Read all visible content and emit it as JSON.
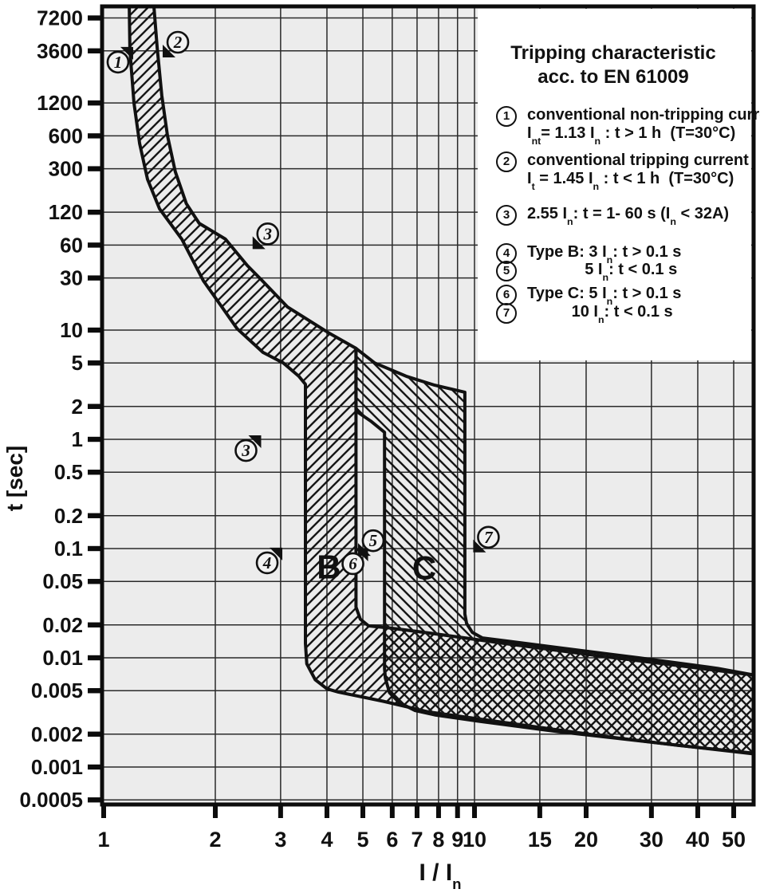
{
  "colors": {
    "background": "#ffffff",
    "plot_background": "#ececec",
    "grid": "#2a2a2a",
    "ink": "#111111"
  },
  "axes": {
    "y_label": "t [sec]",
    "x_label": "I / I_n_"
  },
  "legend": {
    "title_line1": "Tripping characteristic",
    "title_line2": "acc. to EN 61009",
    "items": [
      {
        "num": "1",
        "lines": [
          "conventional non-tripping current",
          "I_nt_= 1.13 I_n_ : t > 1 h  (T=30°C)"
        ]
      },
      {
        "num": "2",
        "lines": [
          "conventional tripping current",
          "I_t_ = 1.45 I_n_ : t < 1 h  (T=30°C)"
        ]
      },
      {
        "num": "3",
        "lines": [
          "2.55 I_n_: t = 1- 60 s (I_n_ < 32A)"
        ]
      },
      {
        "num": "4",
        "lines": [
          "Type B: 3 I_n_: t > 0.1 s"
        ]
      },
      {
        "num": "5",
        "lines": [
          "             5 I_n_: t < 0.1 s"
        ]
      },
      {
        "num": "6",
        "lines": [
          "Type C: 5 I_n_: t > 0.1 s"
        ]
      },
      {
        "num": "7",
        "lines": [
          "          10 I_n_: t < 0.1 s"
        ]
      }
    ]
  },
  "chart_data": {
    "type": "area",
    "title": "Tripping characteristic acc. to EN 61009",
    "xlabel": "I / In",
    "ylabel": "t [sec]",
    "x_scale": "log",
    "y_scale": "log",
    "xlim": [
      1,
      57
    ],
    "ylim": [
      0.0005,
      9200
    ],
    "grid": true,
    "x_ticks": [
      1,
      2,
      3,
      4,
      5,
      6,
      7,
      8,
      9,
      10,
      15,
      20,
      30,
      40,
      50
    ],
    "y_ticks": [
      7200,
      3600,
      1200,
      600,
      300,
      120,
      60,
      30,
      10,
      5,
      2,
      1,
      0.5,
      0.2,
      0.1,
      0.05,
      0.02,
      0.01,
      0.005,
      0.002,
      0.001,
      0.0005
    ],
    "key_points": [
      {
        "id": "1",
        "meaning": "conventional non-tripping current",
        "I_per_In": 1.13,
        "t_s": "> 3600"
      },
      {
        "id": "2",
        "meaning": "conventional tripping current",
        "I_per_In": 1.45,
        "t_s": "< 3600"
      },
      {
        "id": "3",
        "meaning": "2.55 In trip window (In < 32A)",
        "I_per_In": 2.55,
        "t_s": "1 - 60"
      },
      {
        "id": "4",
        "meaning": "Type B hold limit",
        "I_per_In": 3,
        "t_s": "> 0.1"
      },
      {
        "id": "5",
        "meaning": "Type B instantaneous trip",
        "I_per_In": 5,
        "t_s": "< 0.1"
      },
      {
        "id": "6",
        "meaning": "Type C hold limit",
        "I_per_In": 5,
        "t_s": "> 0.1"
      },
      {
        "id": "7",
        "meaning": "Type C instantaneous trip",
        "I_per_In": 10,
        "t_s": "< 0.1"
      }
    ],
    "bands": [
      {
        "name": "type-B-band",
        "hatch": "fwd",
        "points": [
          [
            1.172,
            9160
          ],
          [
            1.177,
            3660
          ],
          [
            1.207,
            1200
          ],
          [
            1.25,
            510
          ],
          [
            1.313,
            240
          ],
          [
            1.414,
            129
          ],
          [
            1.625,
            68
          ],
          [
            1.857,
            28.3
          ],
          [
            2.07,
            16.8
          ],
          [
            2.29,
            10.3
          ],
          [
            2.69,
            6.25
          ],
          [
            3.05,
            5.0
          ],
          [
            3.36,
            3.78
          ],
          [
            3.5,
            3.19
          ],
          [
            3.5,
            0.0135
          ],
          [
            3.53,
            0.0088
          ],
          [
            3.72,
            0.0063
          ],
          [
            4.0,
            0.0052
          ],
          [
            4.3,
            0.00485
          ],
          [
            5.67,
            0.004
          ],
          [
            7.5,
            0.0032
          ],
          [
            12.5,
            0.00251
          ],
          [
            22.7,
            0.0019
          ],
          [
            35.3,
            0.00158
          ],
          [
            57.5,
            0.00133
          ],
          [
            57.5,
            0.0069
          ],
          [
            35.3,
            0.0085
          ],
          [
            22.7,
            0.0102
          ],
          [
            12.5,
            0.0133
          ],
          [
            7.6,
            0.0168
          ],
          [
            5.95,
            0.0187
          ],
          [
            5.18,
            0.0196
          ],
          [
            4.92,
            0.0226
          ],
          [
            4.79,
            0.0291
          ],
          [
            4.79,
            0.0413
          ],
          [
            4.79,
            6.8
          ],
          [
            4.03,
            9.5
          ],
          [
            3.13,
            16.3
          ],
          [
            2.69,
            27.9
          ],
          [
            2.44,
            39
          ],
          [
            2.13,
            68
          ],
          [
            1.81,
            95
          ],
          [
            1.67,
            144
          ],
          [
            1.56,
            282
          ],
          [
            1.486,
            603
          ],
          [
            1.435,
            1400
          ],
          [
            1.394,
            3840
          ],
          [
            1.366,
            9160
          ]
        ]
      },
      {
        "name": "type-C-band",
        "hatch": "back",
        "points": [
          [
            4.79,
            6.8
          ],
          [
            5.38,
            5.0
          ],
          [
            6.57,
            3.76
          ],
          [
            7.81,
            3.13
          ],
          [
            9.42,
            2.7
          ],
          [
            9.42,
            0.0252
          ],
          [
            9.52,
            0.0206
          ],
          [
            9.86,
            0.0171
          ],
          [
            10.5,
            0.0152
          ],
          [
            16.8,
            0.0124
          ],
          [
            27.7,
            0.01
          ],
          [
            45.3,
            0.008
          ],
          [
            57.5,
            0.0069
          ],
          [
            57.5,
            0.00131
          ],
          [
            27.7,
            0.00174
          ],
          [
            16.8,
            0.00211
          ],
          [
            10.3,
            0.00262
          ],
          [
            7.81,
            0.003
          ],
          [
            6.9,
            0.0033
          ],
          [
            6.26,
            0.0039
          ],
          [
            5.9,
            0.0048
          ],
          [
            5.75,
            0.0065
          ],
          [
            5.72,
            0.008
          ],
          [
            5.72,
            1.16
          ],
          [
            5.25,
            1.47
          ],
          [
            4.88,
            1.74
          ],
          [
            4.79,
            1.93
          ]
        ]
      }
    ],
    "annotations": [
      {
        "n": "1",
        "I": 1.093,
        "t": 2840,
        "dir": "ne"
      },
      {
        "n": "2",
        "I": 1.585,
        "t": 4315,
        "dir": "sw"
      },
      {
        "n": "3",
        "I": 2.77,
        "t": 76,
        "dir": "sw"
      },
      {
        "n": "3",
        "I": 2.42,
        "t": 0.79,
        "dir": "ne"
      },
      {
        "n": "4",
        "I": 2.76,
        "t": 0.074,
        "dir": "ne"
      },
      {
        "n": "5",
        "I": 5.33,
        "t": 0.118,
        "dir": "sw"
      },
      {
        "n": "6",
        "I": 4.7,
        "t": 0.0727,
        "dir": "ne"
      },
      {
        "n": "7",
        "I": 10.9,
        "t": 0.127,
        "dir": "sw"
      }
    ],
    "zone_labels": [
      {
        "text": "B",
        "I": 4.05,
        "t": 0.0675
      },
      {
        "text": "C",
        "I": 7.32,
        "t": 0.066
      }
    ],
    "legend_position": "upper right"
  }
}
